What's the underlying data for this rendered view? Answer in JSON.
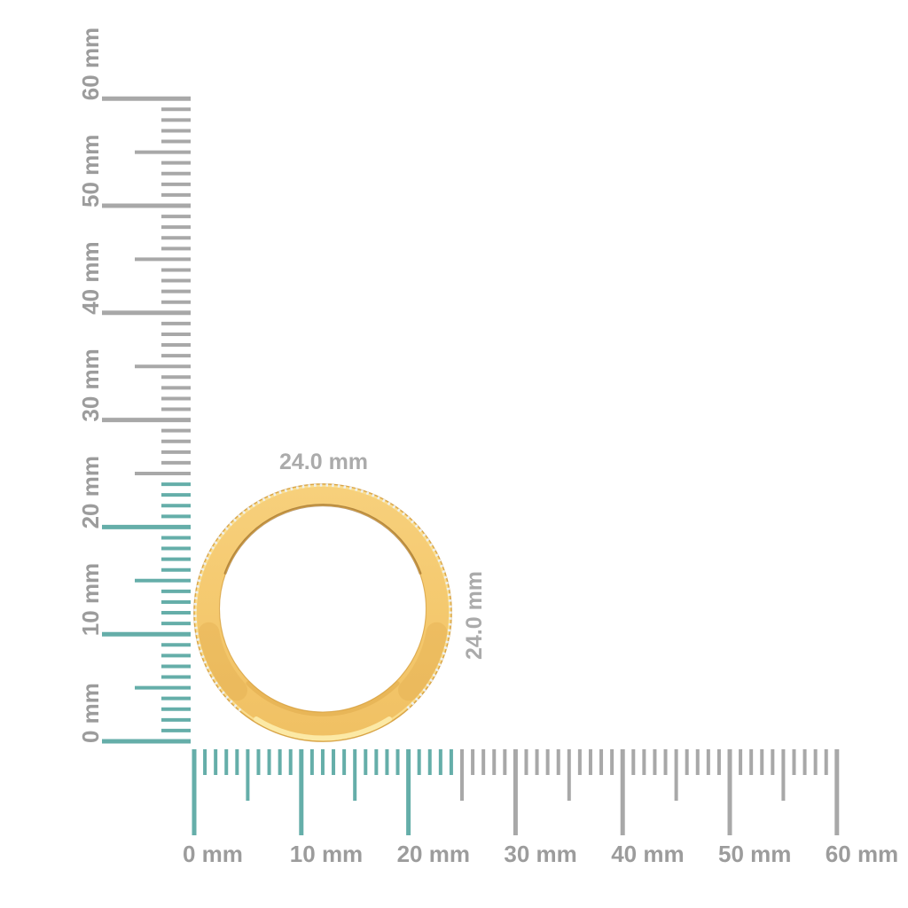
{
  "page": {
    "background": "#ffffff",
    "description_visible_object": "yellow gold eternity band ring shown against measurement rulers"
  },
  "units": "mm",
  "rulers": {
    "vertical": {
      "unit": "mm",
      "min_mm": 0,
      "max_mm": 60,
      "minor_step_mm": 1,
      "medium_step_mm": 5,
      "major_step_mm": 10,
      "label_step_mm": 10,
      "highlight_to_mm": 24,
      "labels": [
        "0 mm",
        "10 mm",
        "20 mm",
        "30 mm",
        "40 mm",
        "50 mm",
        "60 mm"
      ]
    },
    "horizontal": {
      "unit": "mm",
      "min_mm": 0,
      "max_mm": 60,
      "minor_step_mm": 1,
      "medium_step_mm": 5,
      "major_step_mm": 10,
      "label_step_mm": 10,
      "highlight_to_mm": 24,
      "labels": [
        "0 mm",
        "10 mm",
        "20 mm",
        "30 mm",
        "40 mm",
        "50 mm",
        "60 mm"
      ]
    }
  },
  "object": {
    "name": "gold-ring",
    "outer_diameter_mm": 24.0,
    "width_label": "24.0 mm",
    "height_label": "24.0 mm",
    "material": "yellow-gold",
    "stones": "small channel-set diamonds along outer edge"
  },
  "colors": {
    "highlight_tick": "#65aea9",
    "inactive_tick": "#a8a8a8",
    "ruler_label": "#9c9c9c",
    "dimension_label": "#ababab",
    "gold_top": "#f7d07c",
    "gold_base": "#f4c86d",
    "gold_bottom": "#f0c063",
    "gold_deep": "#dfa94a",
    "gold_edge": "#d49c38",
    "gold_light": "#fae094",
    "gold_highlight": "#fce9a5",
    "inner_shadow": "#7b4e12",
    "diamond": "#ecf1f7",
    "background": "#ffffff"
  }
}
